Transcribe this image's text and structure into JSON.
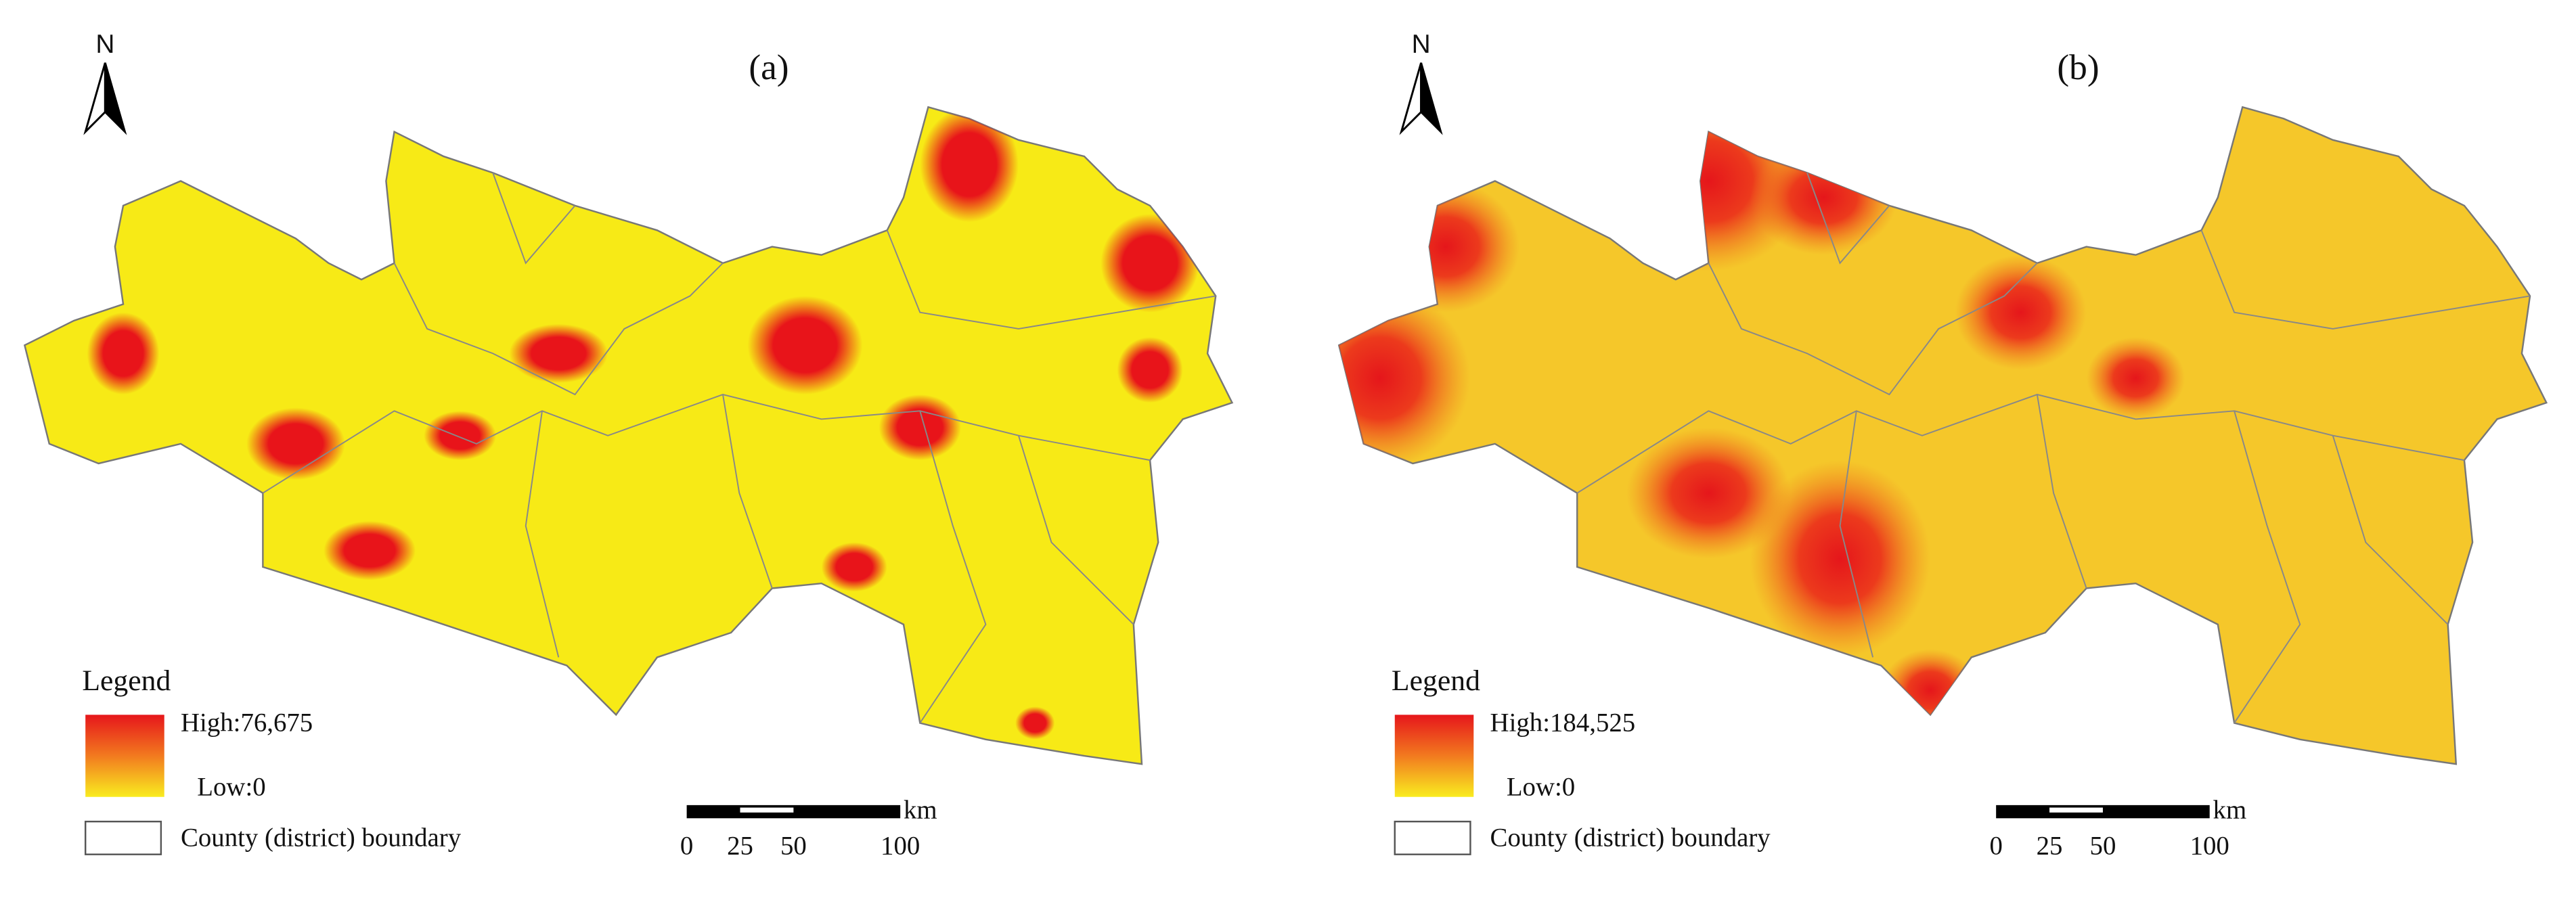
{
  "panels": [
    {
      "label": "(a)",
      "north": "N",
      "legend": {
        "title": "Legend",
        "high": "High:76,675",
        "low": "Low:0",
        "boundary": "County (district) boundary"
      },
      "scale": {
        "ticks": [
          0,
          25,
          50,
          100
        ],
        "unit": "km"
      }
    },
    {
      "label": "(b)",
      "north": "N",
      "legend": {
        "title": "Legend",
        "high": "High:184,525",
        "low": "Low:0",
        "boundary": "County (district) boundary"
      },
      "scale": {
        "ticks": [
          0,
          25,
          50,
          100
        ],
        "unit": "km"
      }
    }
  ]
}
